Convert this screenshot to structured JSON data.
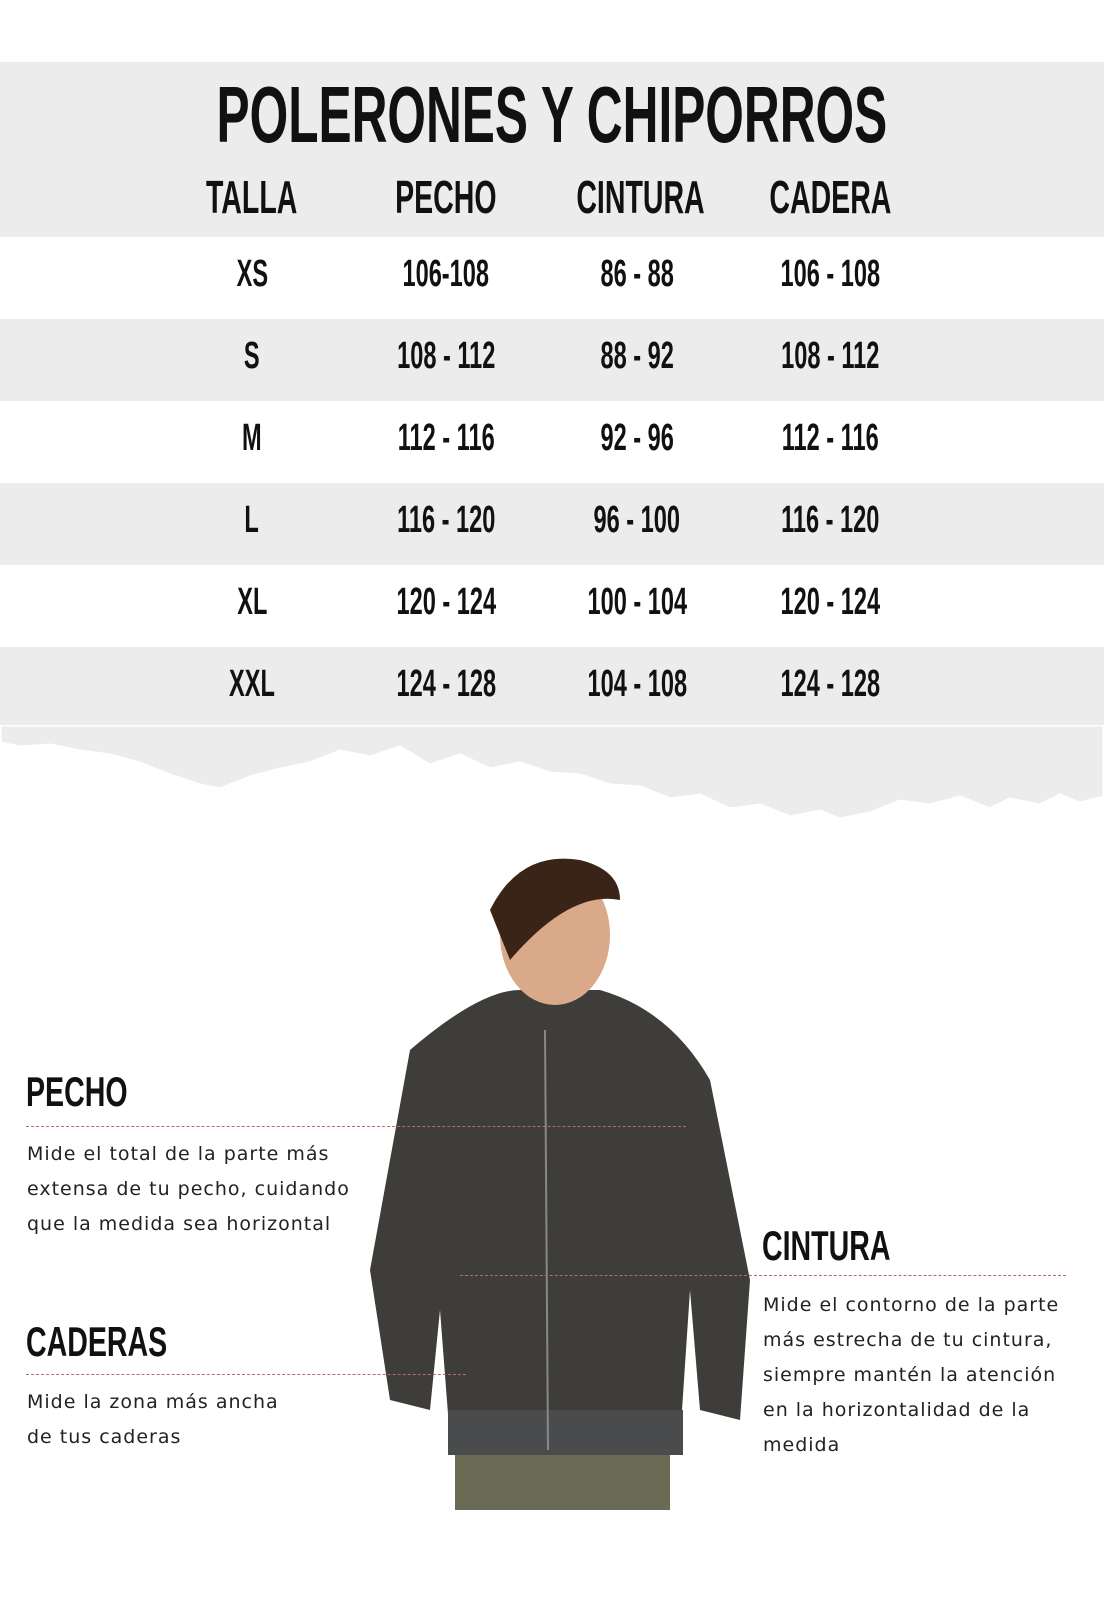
{
  "title": "POLERONES Y CHIPORROS",
  "table": {
    "headers": [
      "TALLA",
      "PECHO",
      "CINTURA",
      "CADERA"
    ],
    "rows": [
      [
        "XS",
        "106-108",
        "86 - 88",
        "106 - 108"
      ],
      [
        "S",
        "108 - 112",
        "88 - 92",
        "108 - 112"
      ],
      [
        "M",
        "112 - 116",
        "92 - 96",
        "112 - 116"
      ],
      [
        "L",
        "116 - 120",
        "96 - 100",
        "116 - 120"
      ],
      [
        "XL",
        "120 - 124",
        "100 - 104",
        "120 - 124"
      ],
      [
        "XXL",
        "124 - 128",
        "104 - 108",
        "124 - 128"
      ]
    ]
  },
  "guide": {
    "pecho": {
      "title": "PECHO",
      "lines": [
        "Mide el total de la parte más",
        "extensa de tu pecho, cuidando",
        "que la medida sea horizontal"
      ]
    },
    "caderas": {
      "title": "CADERAS",
      "lines": [
        "Mide la zona más ancha",
        "de tus caderas"
      ]
    },
    "cintura": {
      "title": "CINTURA",
      "lines": [
        "Mide el contorno de la parte",
        "más estrecha de tu cintura,",
        "siempre mantén la atención",
        "en  la horizontalidad de la",
        "medida"
      ]
    }
  },
  "colors": {
    "band": "#ececec",
    "dash": "#b76a6a",
    "jacket": "#3e3d3a"
  }
}
